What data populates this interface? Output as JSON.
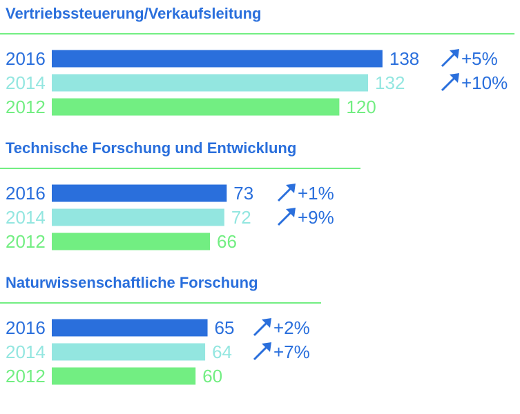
{
  "chart_data": {
    "type": "bar",
    "orientation": "horizontal",
    "colors": {
      "2016": "#2a6fdc",
      "2014": "#93e6e0",
      "2012": "#72ee82",
      "title": "#2a6fdc",
      "divider": "#72ee82",
      "arrow": "#2a6fdc"
    },
    "groups": [
      {
        "title": "Vertriebssteuerung/Verkaufsleitung",
        "rows": [
          {
            "year": "2016",
            "value": 138,
            "value_label": "138",
            "change": "+5%"
          },
          {
            "year": "2014",
            "value": 132,
            "value_label": "132",
            "change": "+10%"
          },
          {
            "year": "2012",
            "value": 120,
            "value_label": "120",
            "change": ""
          }
        ]
      },
      {
        "title": "Technische Forschung und Entwicklung",
        "rows": [
          {
            "year": "2016",
            "value": 73,
            "value_label": "73",
            "change": "+1%"
          },
          {
            "year": "2014",
            "value": 72,
            "value_label": "72",
            "change": "+9%"
          },
          {
            "year": "2012",
            "value": 66,
            "value_label": "66",
            "change": ""
          }
        ]
      },
      {
        "title": "Naturwissenschaftliche Forschung",
        "rows": [
          {
            "year": "2016",
            "value": 65,
            "value_label": "65",
            "change": "+2%"
          },
          {
            "year": "2014",
            "value": 64,
            "value_label": "64",
            "change": "+7%"
          },
          {
            "year": "2012",
            "value": 60,
            "value_label": "60",
            "change": ""
          }
        ]
      }
    ]
  }
}
